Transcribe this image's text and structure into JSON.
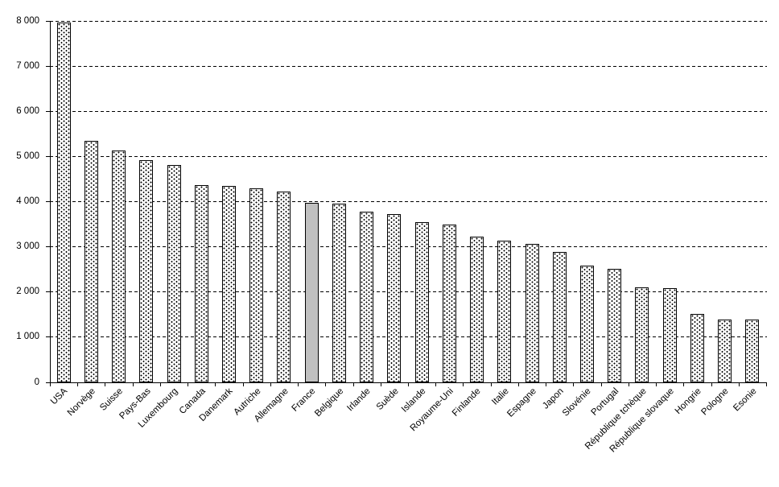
{
  "chart_data": {
    "type": "bar",
    "title": "",
    "xlabel": "",
    "ylabel": "",
    "categories": [
      "USA",
      "Norvège",
      "Suisse",
      "Pays-Bas",
      "Luxembourg",
      "Canada",
      "Danemark",
      "Autriche",
      "Allemagne",
      "France",
      "Belgique",
      "Irlande",
      "Suède",
      "Islande",
      "Royaume-Uni",
      "Finlande",
      "Italie",
      "Espagne",
      "Japon",
      "Slovénie",
      "Portugal",
      "République tchèque",
      "République slovaque",
      "Hongrie",
      "Pologne",
      "Esonie"
    ],
    "values": [
      7960,
      5350,
      5140,
      4910,
      4810,
      4360,
      4350,
      4290,
      4220,
      3980,
      3950,
      3780,
      3720,
      3540,
      3490,
      3230,
      3140,
      3070,
      2880,
      2580,
      2510,
      2110,
      2080,
      1510,
      1390,
      1390
    ],
    "highlighted_category": "France",
    "ylim": [
      0,
      8000
    ],
    "ytick_step": 1000,
    "ytick_labels": [
      "0",
      "1 000",
      "2 000",
      "3 000",
      "4 000",
      "5 000",
      "6 000",
      "7 000",
      "8 000"
    ],
    "grid": "horizontal-dashed",
    "legend": "none",
    "colors": {
      "bar_fill": "#ffffff",
      "bar_pattern_dots": "#000000",
      "bar_border": "#000000",
      "highlight_fill": "#c0c0c0",
      "axis": "#000000",
      "background": "#ffffff",
      "text": "#000000"
    }
  }
}
